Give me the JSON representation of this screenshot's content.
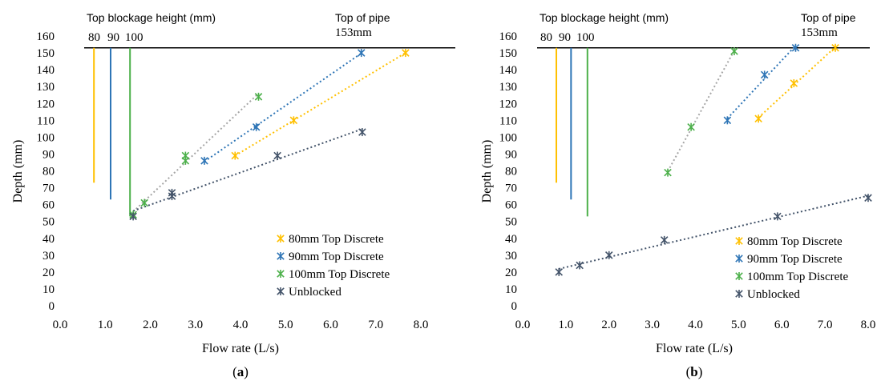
{
  "colors": {
    "80mm": "#FFC000",
    "90mm": "#2E75B6",
    "100mm": "#4CB04A",
    "unblocked": "#44546A",
    "trend_gray": "#A6A6A6"
  },
  "chart_data": [
    {
      "type": "scatter",
      "panel_label": "a",
      "xlabel": "Flow rate (L/s)",
      "ylabel": "Depth (mm)",
      "xlim": [
        0,
        8
      ],
      "ylim": [
        0,
        160
      ],
      "x_ticks": [
        "0.0",
        "1.0",
        "2.0",
        "3.0",
        "4.0",
        "5.0",
        "6.0",
        "7.0",
        "8.0"
      ],
      "y_ticks": [
        "0",
        "10",
        "20",
        "30",
        "40",
        "50",
        "60",
        "70",
        "80",
        "90",
        "100",
        "110",
        "120",
        "130",
        "140",
        "150",
        "160"
      ],
      "annotations": {
        "blockage_title": "Top blockage height (mm)",
        "blockage_values": [
          "80",
          "90",
          "100"
        ],
        "pipe_label_1": "Top of pipe",
        "pipe_label_2": "153mm"
      },
      "pipe_top": 153,
      "blockage_lines": [
        {
          "name": "80",
          "x": 0.75,
          "y0": 73,
          "y1": 153,
          "color_key": "80mm"
        },
        {
          "name": "90",
          "x": 1.12,
          "y0": 63,
          "y1": 153,
          "color_key": "90mm"
        },
        {
          "name": "100",
          "x": 1.55,
          "y0": 53,
          "y1": 153,
          "color_key": "100mm"
        }
      ],
      "legend_position": "bottom-right",
      "series": [
        {
          "name": "80mm Top Discrete",
          "color_key": "80mm",
          "trend_color_key": "80mm",
          "points": [
            [
              3.88,
              89
            ],
            [
              5.18,
              110
            ],
            [
              7.66,
              150
            ]
          ]
        },
        {
          "name": "90mm Top Discrete",
          "color_key": "90mm",
          "trend_color_key": "90mm",
          "points": [
            [
              3.2,
              86
            ],
            [
              4.35,
              106
            ],
            [
              6.68,
              150
            ]
          ]
        },
        {
          "name": "100mm Top Discrete",
          "color_key": "100mm",
          "trend_color_key": "trend_gray",
          "points": [
            [
              1.62,
              54
            ],
            [
              1.87,
              61
            ],
            [
              2.78,
              86
            ],
            [
              2.78,
              89
            ],
            [
              4.4,
              124
            ]
          ]
        },
        {
          "name": "Unblocked",
          "color_key": "unblocked",
          "trend_color_key": "unblocked",
          "points": [
            [
              1.62,
              53
            ],
            [
              2.48,
              65
            ],
            [
              2.48,
              67
            ],
            [
              4.82,
              89
            ],
            [
              6.7,
              103
            ]
          ]
        }
      ]
    },
    {
      "type": "scatter",
      "panel_label": "b",
      "xlabel": "Flow rate (L/s)",
      "ylabel": "Depth (mm)",
      "xlim": [
        0,
        8
      ],
      "ylim": [
        0,
        160
      ],
      "x_ticks": [
        "0.0",
        "1.0",
        "2.0",
        "3.0",
        "4.0",
        "5.0",
        "6.0",
        "7.0",
        "8.0"
      ],
      "y_ticks": [
        "0",
        "10",
        "20",
        "30",
        "40",
        "50",
        "60",
        "70",
        "80",
        "90",
        "100",
        "110",
        "120",
        "130",
        "140",
        "150",
        "160"
      ],
      "annotations": {
        "blockage_title": "Top blockage height (mm)",
        "blockage_values": [
          "80",
          "90",
          "100"
        ],
        "pipe_label_1": "Top of pipe",
        "pipe_label_2": "153mm"
      },
      "pipe_top": 153,
      "blockage_lines": [
        {
          "name": "80",
          "x": 0.78,
          "y0": 73,
          "y1": 153,
          "color_key": "80mm"
        },
        {
          "name": "90",
          "x": 1.12,
          "y0": 63,
          "y1": 153,
          "color_key": "90mm"
        },
        {
          "name": "100",
          "x": 1.5,
          "y0": 53,
          "y1": 153,
          "color_key": "100mm"
        }
      ],
      "legend_position": "bottom-right",
      "series": [
        {
          "name": "80mm Top Discrete",
          "color_key": "80mm",
          "trend_color_key": "80mm",
          "points": [
            [
              5.46,
              111
            ],
            [
              6.28,
              132
            ],
            [
              7.24,
              153
            ]
          ]
        },
        {
          "name": "90mm Top Discrete",
          "color_key": "90mm",
          "trend_color_key": "90mm",
          "points": [
            [
              4.74,
              110
            ],
            [
              5.6,
              137
            ],
            [
              6.32,
              153
            ]
          ]
        },
        {
          "name": "100mm Top Discrete",
          "color_key": "100mm",
          "trend_color_key": "trend_gray",
          "points": [
            [
              3.36,
              79
            ],
            [
              3.9,
              106
            ],
            [
              4.9,
              151
            ]
          ]
        },
        {
          "name": "Unblocked",
          "color_key": "unblocked",
          "trend_color_key": "unblocked",
          "points": [
            [
              0.84,
              20
            ],
            [
              1.32,
              24
            ],
            [
              2.0,
              30
            ],
            [
              3.28,
              39
            ],
            [
              5.9,
              53
            ],
            [
              8.0,
              64
            ]
          ]
        }
      ]
    }
  ]
}
